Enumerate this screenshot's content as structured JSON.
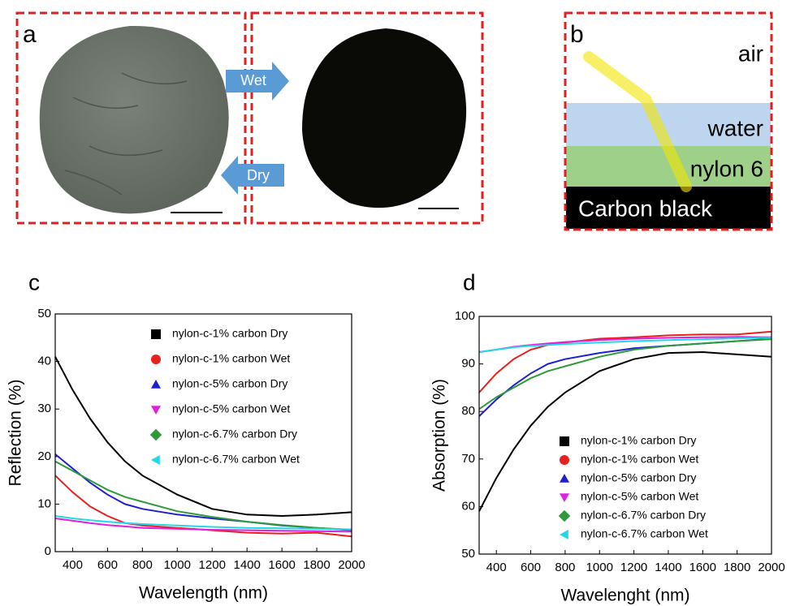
{
  "panel_a": {
    "label": "a",
    "wet": "Wet",
    "dry": "Dry"
  },
  "panel_b": {
    "label": "b",
    "air": "air",
    "water": "water",
    "nylon": "nylon 6",
    "carbon": "Carbon black"
  },
  "chart_data": [
    {
      "type": "line",
      "panel_label": "c",
      "x_label": "Wavelength (nm)",
      "y_label": "Reflection (%)",
      "x": [
        300,
        400,
        500,
        600,
        700,
        800,
        1000,
        1200,
        1400,
        1600,
        1800,
        2000
      ],
      "xlim": [
        300,
        2000
      ],
      "xticks": [
        400,
        600,
        800,
        1000,
        1200,
        1400,
        1600,
        1800,
        2000
      ],
      "ylim": [
        0,
        50
      ],
      "yticks": [
        0,
        10,
        20,
        30,
        40,
        50
      ],
      "series": [
        {
          "name": "nylon-c-1% carbon Dry",
          "color": "#000000",
          "marker": "square",
          "values": [
            41,
            34,
            28,
            23,
            19,
            16,
            12,
            9,
            7.8,
            7.5,
            7.8,
            8.3
          ]
        },
        {
          "name": "nylon-c-1% carbon Wet",
          "color": "#e8201e",
          "marker": "circle",
          "values": [
            16,
            12.5,
            9.5,
            7.5,
            6,
            5.5,
            5,
            4.5,
            4,
            3.8,
            4,
            3.2
          ]
        },
        {
          "name": "nylon-c-5% carbon Dry",
          "color": "#1f1fd0",
          "marker": "triangle-up",
          "values": [
            20.5,
            17.5,
            14.5,
            12,
            10,
            9,
            7.8,
            7,
            6.3,
            5.5,
            5,
            4.5
          ]
        },
        {
          "name": "nylon-c-5% carbon Wet",
          "color": "#e020e0",
          "marker": "triangle-down",
          "values": [
            7,
            6.5,
            6,
            5.6,
            5.3,
            5,
            4.8,
            4.6,
            4.5,
            4.4,
            4.3,
            4.2
          ]
        },
        {
          "name": "nylon-c-6.7% carbon Dry",
          "color": "#2e9a3a",
          "marker": "diamond",
          "values": [
            19,
            17,
            15,
            13,
            11.5,
            10.5,
            8.5,
            7.3,
            6.3,
            5.6,
            5,
            4.6
          ]
        },
        {
          "name": "nylon-c-6.7% carbon Wet",
          "color": "#20d8e8",
          "marker": "triangle-left",
          "values": [
            7.5,
            7,
            6.6,
            6.3,
            6,
            5.8,
            5.5,
            5.2,
            5,
            4.9,
            4.8,
            4.7
          ]
        }
      ]
    },
    {
      "type": "line",
      "panel_label": "d",
      "x_label": "Wavelenght (nm)",
      "y_label": "Absorption (%)",
      "x": [
        300,
        400,
        500,
        600,
        700,
        800,
        1000,
        1200,
        1400,
        1600,
        1800,
        2000
      ],
      "xlim": [
        300,
        2000
      ],
      "xticks": [
        400,
        600,
        800,
        1000,
        1200,
        1400,
        1600,
        1800,
        2000
      ],
      "ylim": [
        50,
        100
      ],
      "yticks": [
        50,
        60,
        70,
        80,
        90,
        100
      ],
      "series": [
        {
          "name": "nylon-c-1% carbon Dry",
          "color": "#000000",
          "marker": "square",
          "values": [
            59,
            66,
            72,
            77,
            81,
            84,
            88.5,
            91,
            92.3,
            92.5,
            92,
            91.5
          ]
        },
        {
          "name": "nylon-c-1% carbon Wet",
          "color": "#e8201e",
          "marker": "circle",
          "values": [
            84,
            88,
            91,
            93,
            94,
            94.5,
            95.3,
            95.6,
            96,
            96.2,
            96.2,
            96.8
          ]
        },
        {
          "name": "nylon-c-5% carbon Dry",
          "color": "#1f1fd0",
          "marker": "triangle-up",
          "values": [
            79,
            82.5,
            85.5,
            88,
            90,
            91,
            92.3,
            93.3,
            93.8,
            94.3,
            94.8,
            95.3
          ]
        },
        {
          "name": "nylon-c-5% carbon Wet",
          "color": "#e020e0",
          "marker": "triangle-down",
          "values": [
            92.5,
            93,
            93.6,
            94,
            94.3,
            94.6,
            95,
            95.3,
            95.5,
            95.6,
            95.7,
            95.6
          ]
        },
        {
          "name": "nylon-c-6.7% carbon Dry",
          "color": "#2e9a3a",
          "marker": "diamond",
          "values": [
            80.5,
            83,
            85,
            87,
            88.5,
            89.5,
            91.5,
            93,
            93.8,
            94.3,
            94.8,
            95.2
          ]
        },
        {
          "name": "nylon-c-6.7% carbon Wet",
          "color": "#20d8e8",
          "marker": "triangle-left",
          "values": [
            92.5,
            93,
            93.5,
            93.8,
            94,
            94.2,
            94.5,
            94.8,
            95,
            95.2,
            95.4,
            95.5
          ]
        }
      ]
    }
  ]
}
